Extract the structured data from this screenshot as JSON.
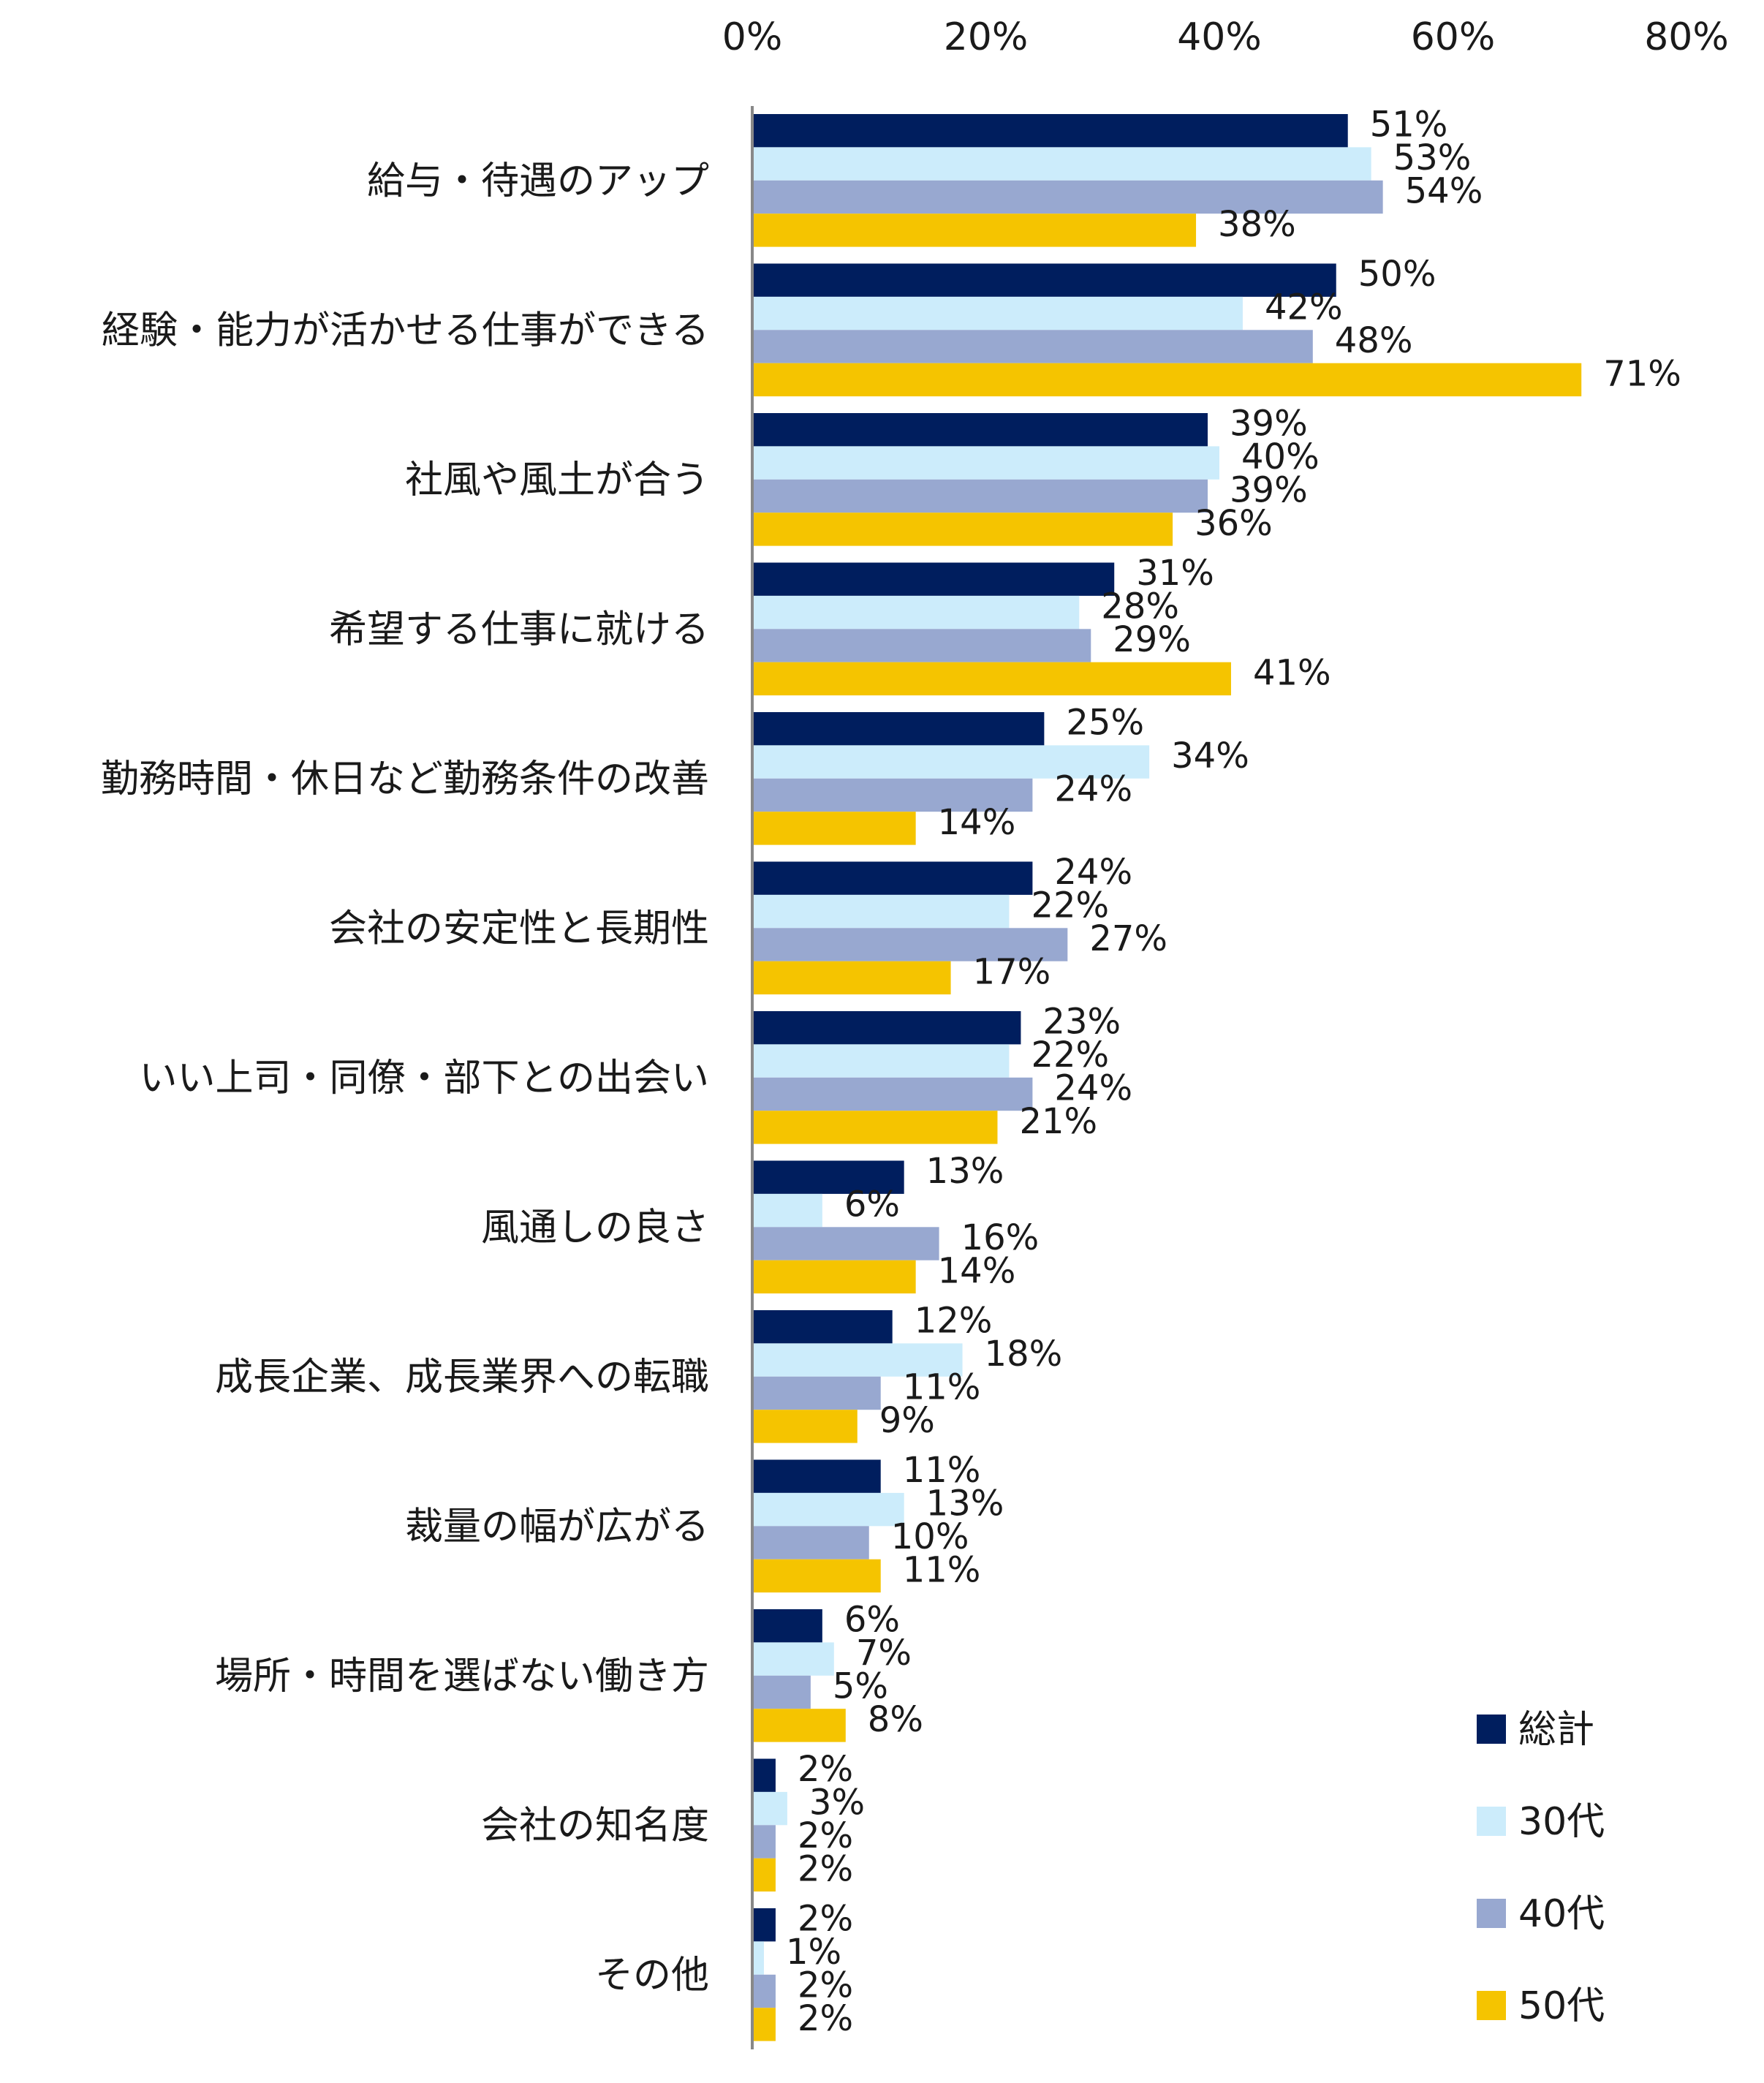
{
  "chart_data": {
    "type": "bar",
    "orientation": "horizontal",
    "xlim": [
      0,
      80
    ],
    "xticks": [
      "0%",
      "20%",
      "40%",
      "60%",
      "80%"
    ],
    "xtick_values": [
      0,
      20,
      40,
      60,
      80
    ],
    "grid": false,
    "legend_position": "bottom-right",
    "categories": [
      "給与・待遇のアップ",
      "経験・能力が活かせる仕事ができる",
      "社風や風土が合う",
      "希望する仕事に就ける",
      "勤務時間・休日など勤務条件の改善",
      "会社の安定性と長期性",
      "いい上司・同僚・部下との出会い",
      "風通しの良さ",
      "成長企業、成長業界への転職",
      "裁量の幅が広がる",
      "場所・時間を選ばない働き方",
      "会社の知名度",
      "その他"
    ],
    "series": [
      {
        "name": "総計",
        "color": "#001E5E",
        "values": [
          51,
          50,
          39,
          31,
          25,
          24,
          23,
          13,
          12,
          11,
          6,
          2,
          2
        ]
      },
      {
        "name": "30代",
        "color": "#CCECFB",
        "values": [
          53,
          42,
          40,
          28,
          34,
          22,
          22,
          6,
          18,
          13,
          7,
          3,
          1
        ]
      },
      {
        "name": "40代",
        "color": "#98A8D0",
        "values": [
          54,
          48,
          39,
          29,
          24,
          27,
          24,
          16,
          11,
          10,
          5,
          2,
          2
        ]
      },
      {
        "name": "50代",
        "color": "#F5C400",
        "values": [
          38,
          71,
          36,
          41,
          14,
          17,
          21,
          14,
          9,
          11,
          8,
          2,
          2
        ]
      }
    ],
    "value_label_suffix": "%"
  }
}
